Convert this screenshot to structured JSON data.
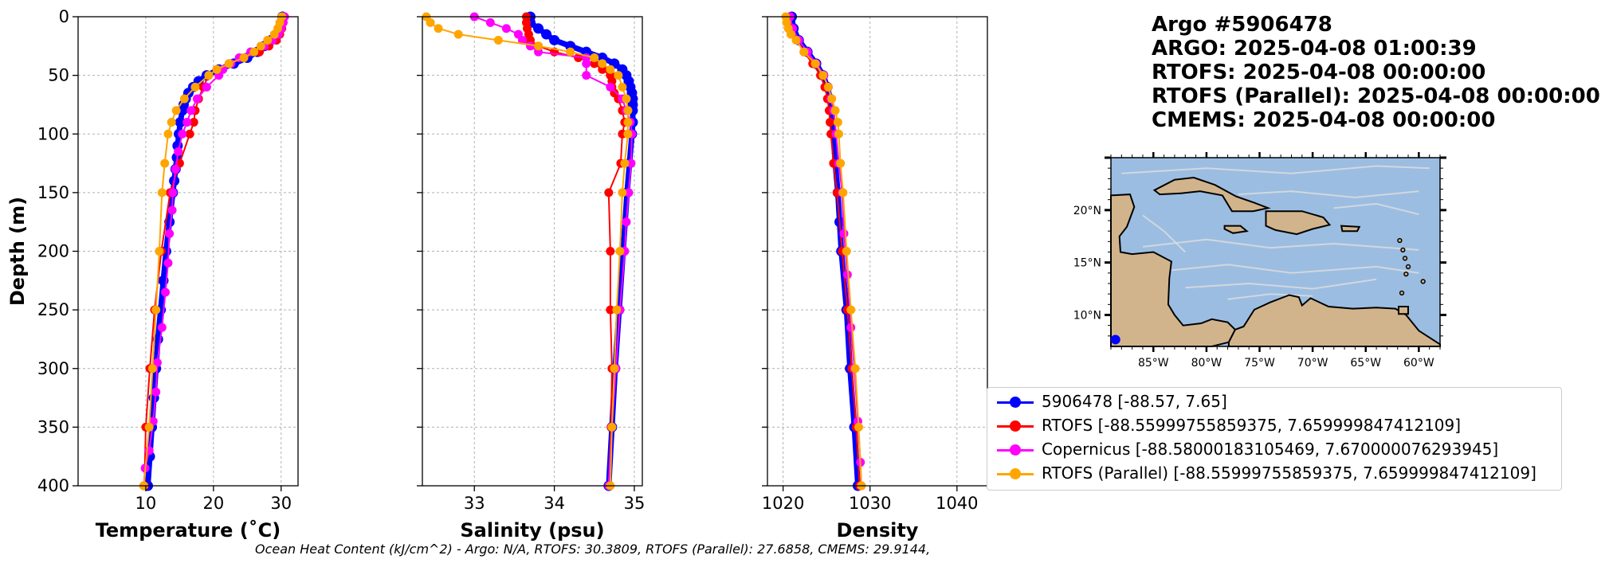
{
  "title": {
    "lines": [
      "Argo #5906478",
      "ARGO:  2025-04-08 01:00:39",
      "RTOFS: 2025-04-08 00:00:00",
      "RTOFS (Parallel): 2025-04-08 00:00:00",
      "CMEMS: 2025-04-08 00:00:00"
    ]
  },
  "footer": "Ocean Heat Content (kJ/cm^2) - Argo: N/A,  RTOFS: 30.3809,  RTOFS (Parallel): 27.6858,  CMEMS: 29.9144,",
  "colors": {
    "argo": "#0000ff",
    "rtofs": "#ff0000",
    "copernicus": "#ff00ff",
    "rtofs_parallel": "#ffa500",
    "ocean": "#9bbde2",
    "land": "#d2b48c"
  },
  "legend": [
    {
      "label": "5906478 [-88.57, 7.65]",
      "color": "#0000ff"
    },
    {
      "label": "RTOFS [-88.55999755859375, 7.659999847412109]",
      "color": "#ff0000"
    },
    {
      "label": "Copernicus [-88.58000183105469, 7.670000076293945]",
      "color": "#ff00ff"
    },
    {
      "label": "RTOFS (Parallel) [-88.55999755859375, 7.659999847412109]",
      "color": "#ffa500"
    }
  ],
  "chart_data": [
    {
      "type": "line",
      "xlabel": "Temperature (˚C)",
      "ylabel": "Depth (m)",
      "xlim": [
        0,
        32.5
      ],
      "ylim": [
        400,
        0
      ],
      "xticks": [
        10,
        20,
        30
      ],
      "yticks": [
        0,
        50,
        100,
        150,
        200,
        250,
        300,
        350,
        400
      ],
      "grid": true,
      "series": [
        {
          "name": "5906478",
          "depth": [
            0,
            5,
            10,
            15,
            20,
            25,
            30,
            35,
            40,
            45,
            50,
            55,
            60,
            65,
            70,
            75,
            80,
            90,
            100,
            110,
            120,
            130,
            140,
            150,
            175,
            200,
            225,
            250,
            275,
            300,
            325,
            350,
            375,
            400
          ],
          "values": [
            30.2,
            30.0,
            29.7,
            29.3,
            28.5,
            27.5,
            26.5,
            25.0,
            23.0,
            20.8,
            19.0,
            17.8,
            17.0,
            16.3,
            15.9,
            15.6,
            15.4,
            15.1,
            14.9,
            14.7,
            14.6,
            14.4,
            14.2,
            14.0,
            13.5,
            13.0,
            12.6,
            12.2,
            11.8,
            11.5,
            11.2,
            10.9,
            10.6,
            10.3
          ]
        },
        {
          "name": "RTOFS",
          "depth": [
            0,
            5,
            10,
            15,
            20,
            25,
            30,
            35,
            40,
            45,
            50,
            60,
            70,
            80,
            90,
            100,
            125,
            150,
            200,
            250,
            300,
            350,
            400
          ],
          "values": [
            30.5,
            30.3,
            30.1,
            29.8,
            29.3,
            28.2,
            26.8,
            24.5,
            22.3,
            20.5,
            19.3,
            18.5,
            17.8,
            17.3,
            17.1,
            16.5,
            15.0,
            13.6,
            12.3,
            11.3,
            10.6,
            10.0,
            9.8
          ]
        },
        {
          "name": "Copernicus",
          "depth": [
            0,
            5,
            10,
            15,
            20,
            25,
            30,
            35,
            40,
            45,
            50,
            60,
            70,
            80,
            90,
            100,
            115,
            130,
            150,
            165,
            185,
            210,
            235,
            265,
            295,
            320,
            345,
            370,
            385,
            400
          ],
          "values": [
            30.5,
            30.3,
            30.0,
            29.6,
            28.7,
            27.5,
            25.5,
            23.8,
            22.6,
            21.4,
            20.8,
            19.0,
            17.6,
            16.7,
            16.1,
            15.4,
            14.8,
            14.4,
            14.0,
            13.9,
            13.5,
            13.3,
            12.9,
            12.4,
            11.7,
            11.5,
            11.1,
            10.5,
            9.9,
            9.7
          ]
        },
        {
          "name": "RTOFS (Parallel)",
          "depth": [
            0,
            5,
            10,
            15,
            20,
            25,
            30,
            35,
            40,
            45,
            50,
            60,
            70,
            80,
            90,
            100,
            125,
            150,
            200,
            250,
            300,
            350,
            400
          ],
          "values": [
            30.1,
            29.8,
            29.5,
            29.0,
            28.0,
            27.0,
            26.0,
            24.5,
            22.3,
            20.5,
            19.3,
            17.3,
            15.7,
            14.5,
            13.8,
            13.3,
            12.8,
            12.4,
            12.0,
            11.5,
            11.0,
            10.5,
            9.7
          ]
        }
      ]
    },
    {
      "type": "line",
      "xlabel": "Salinity (psu)",
      "ylabel": "",
      "xlim": [
        32.35,
        35.1
      ],
      "ylim": [
        400,
        0
      ],
      "xticks": [
        33,
        34,
        35
      ],
      "yticks": [
        0,
        50,
        100,
        150,
        200,
        250,
        300,
        350,
        400
      ],
      "grid": true,
      "series": [
        {
          "name": "5906478",
          "depth": [
            0,
            5,
            10,
            15,
            20,
            25,
            30,
            35,
            40,
            45,
            50,
            55,
            60,
            65,
            70,
            75,
            80,
            90,
            100,
            125,
            150,
            200,
            250,
            300,
            350,
            400
          ],
          "values": [
            33.7,
            33.7,
            33.8,
            33.9,
            34.0,
            34.2,
            34.4,
            34.6,
            34.75,
            34.85,
            34.9,
            34.93,
            34.95,
            34.97,
            34.98,
            34.98,
            34.98,
            34.98,
            34.97,
            34.94,
            34.91,
            34.86,
            34.81,
            34.76,
            34.72,
            34.68
          ]
        },
        {
          "name": "RTOFS",
          "depth": [
            0,
            5,
            10,
            15,
            20,
            25,
            30,
            35,
            40,
            45,
            50,
            55,
            60,
            65,
            70,
            80,
            90,
            100,
            125,
            150,
            200,
            250,
            300,
            350,
            400
          ],
          "values": [
            33.65,
            33.65,
            33.66,
            33.68,
            33.7,
            33.8,
            34.0,
            34.3,
            34.5,
            34.6,
            34.7,
            34.72,
            34.72,
            34.75,
            34.8,
            34.85,
            34.88,
            34.85,
            34.83,
            34.68,
            34.7,
            34.7,
            34.72,
            34.71,
            34.68
          ]
        },
        {
          "name": "Copernicus",
          "depth": [
            0,
            5,
            10,
            15,
            20,
            25,
            30,
            35,
            40,
            50,
            60,
            70,
            80,
            90,
            100,
            125,
            150,
            175,
            200,
            250,
            300,
            350,
            400
          ],
          "values": [
            33.0,
            33.2,
            33.4,
            33.55,
            33.6,
            33.7,
            33.8,
            34.4,
            34.4,
            34.4,
            34.7,
            34.85,
            34.9,
            34.95,
            34.97,
            34.96,
            34.93,
            34.9,
            34.88,
            34.82,
            34.77,
            34.72,
            34.68
          ]
        },
        {
          "name": "RTOFS (Parallel)",
          "depth": [
            0,
            5,
            10,
            15,
            20,
            25,
            30,
            35,
            40,
            45,
            50,
            60,
            70,
            80,
            90,
            100,
            125,
            150,
            200,
            250,
            300,
            350,
            400
          ],
          "values": [
            32.4,
            32.45,
            32.55,
            32.8,
            33.3,
            33.8,
            34.2,
            34.5,
            34.6,
            34.7,
            34.8,
            34.85,
            34.9,
            34.92,
            34.92,
            34.92,
            34.88,
            34.85,
            34.82,
            34.78,
            34.75,
            34.72,
            34.7
          ]
        }
      ]
    },
    {
      "type": "line",
      "xlabel": "Density",
      "ylabel": "",
      "xlim": [
        1018.2,
        1043.5
      ],
      "ylim": [
        400,
        0
      ],
      "xticks": [
        1020,
        1030,
        1040
      ],
      "yticks": [
        0,
        50,
        100,
        150,
        200,
        250,
        300,
        350,
        400
      ],
      "grid": true,
      "series": [
        {
          "name": "5906478",
          "depth": [
            0,
            10,
            20,
            30,
            40,
            50,
            60,
            70,
            80,
            100,
            125,
            150,
            175,
            200,
            250,
            300,
            350,
            400
          ],
          "values": [
            1021.0,
            1021.2,
            1021.8,
            1022.8,
            1023.8,
            1024.6,
            1025.1,
            1025.4,
            1025.6,
            1025.8,
            1026.0,
            1026.3,
            1026.5,
            1026.7,
            1027.3,
            1027.7,
            1028.2,
            1028.6
          ]
        },
        {
          "name": "RTOFS",
          "depth": [
            0,
            10,
            20,
            30,
            40,
            50,
            60,
            70,
            80,
            90,
            100,
            125,
            150,
            200,
            250,
            300,
            350,
            400
          ],
          "values": [
            1020.8,
            1021.0,
            1021.6,
            1022.4,
            1023.4,
            1024.3,
            1024.8,
            1025.1,
            1025.3,
            1025.4,
            1025.5,
            1025.8,
            1026.2,
            1026.8,
            1027.4,
            1027.9,
            1028.4,
            1028.8
          ]
        },
        {
          "name": "Copernicus",
          "depth": [
            0,
            10,
            20,
            30,
            40,
            50,
            60,
            70,
            80,
            100,
            125,
            150,
            185,
            220,
            265,
            300,
            345,
            380,
            400
          ],
          "values": [
            1020.8,
            1021.1,
            1021.8,
            1022.8,
            1023.8,
            1024.7,
            1025.2,
            1025.5,
            1025.8,
            1026.1,
            1026.4,
            1026.8,
            1027.0,
            1027.4,
            1027.8,
            1028.2,
            1028.6,
            1028.9,
            1029.0
          ]
        },
        {
          "name": "RTOFS (Parallel)",
          "depth": [
            0,
            5,
            10,
            15,
            20,
            30,
            40,
            50,
            60,
            70,
            80,
            90,
            100,
            125,
            150,
            200,
            250,
            300,
            350,
            400
          ],
          "values": [
            1020.3,
            1020.4,
            1020.6,
            1020.9,
            1021.5,
            1022.4,
            1023.7,
            1024.6,
            1025.2,
            1025.6,
            1026.0,
            1026.3,
            1026.4,
            1026.6,
            1026.9,
            1027.3,
            1027.8,
            1028.3,
            1028.7,
            1029.0
          ]
        }
      ]
    }
  ],
  "map": {
    "lon_range": [
      -89,
      -58
    ],
    "lat_range": [
      7,
      25
    ],
    "lon_ticks": [
      "85°W",
      "80°W",
      "75°W",
      "70°W",
      "65°W",
      "60°W"
    ],
    "lat_ticks": [
      "20°N",
      "15°N",
      "10°N"
    ],
    "marker": {
      "lon": -88.57,
      "lat": 7.65
    }
  }
}
